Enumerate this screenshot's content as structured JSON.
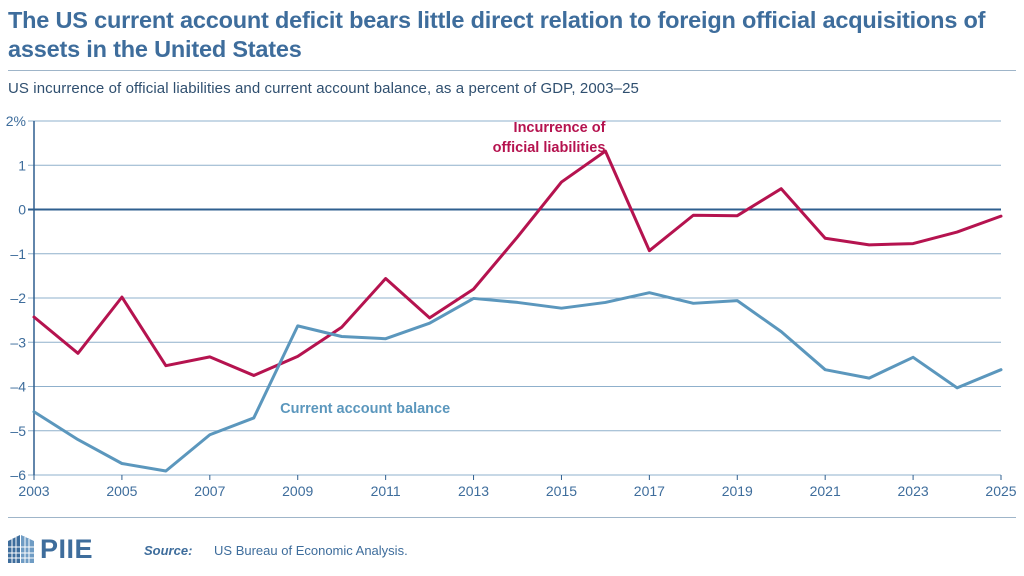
{
  "header": {
    "title": "The US current account deficit bears little direct relation to foreign official acquisitions of assets in the United States",
    "subtitle": "US incurrence of official liabilities and current account balance, as a percent of GDP, 2003–25"
  },
  "footer": {
    "logo_text": "PIIE",
    "source_label": "Source:",
    "source_text": "US Bureau of Economic Analysis."
  },
  "colors": {
    "liabilities": "#b5134f",
    "current_account": "#5b97bd",
    "axis": "#3e6d9c",
    "grid": "#3e6d9c"
  },
  "chart_data": {
    "type": "line",
    "title": "US incurrence of official liabilities and current account balance, as a percent of GDP, 2003–25",
    "xlabel": "",
    "ylabel": "",
    "x": [
      2003,
      2004,
      2005,
      2006,
      2007,
      2008,
      2009,
      2010,
      2011,
      2012,
      2013,
      2014,
      2015,
      2016,
      2017,
      2018,
      2019,
      2020,
      2021,
      2022,
      2023,
      2024,
      2025
    ],
    "xlim": [
      2003,
      2025
    ],
    "ylim": [
      -6,
      2
    ],
    "x_tick_labels": [
      "2003",
      "2005",
      "2007",
      "2009",
      "2011",
      "2013",
      "2015",
      "2017",
      "2019",
      "2021",
      "2023",
      "2025"
    ],
    "y_tick_values": [
      2,
      1,
      0,
      -1,
      -2,
      -3,
      -4,
      -5,
      -6
    ],
    "y_tick_labels": [
      "2%",
      "1",
      "0",
      "–1",
      "–2",
      "–3",
      "–4",
      "–5",
      "–6"
    ],
    "grid": true,
    "series": [
      {
        "name": "Incurrence of official liabilities",
        "label_lines": [
          "Incurrence of",
          "official liabilities"
        ],
        "color": "#b5134f",
        "values": [
          -2.43,
          -3.25,
          -1.98,
          -3.53,
          -3.33,
          -3.75,
          -3.32,
          -2.66,
          -1.56,
          -2.45,
          -1.8,
          -0.62,
          0.62,
          1.32,
          -0.93,
          -0.13,
          -0.14,
          0.47,
          -0.65,
          -0.8,
          -0.77,
          -0.51,
          -0.15
        ]
      },
      {
        "name": "Current account balance",
        "label_lines": [
          "Current account balance"
        ],
        "color": "#5b97bd",
        "values": [
          -4.57,
          -5.2,
          -5.74,
          -5.91,
          -5.09,
          -4.71,
          -2.63,
          -2.87,
          -2.92,
          -2.57,
          -2.01,
          -2.1,
          -2.23,
          -2.1,
          -1.88,
          -2.12,
          -2.06,
          -2.76,
          -3.62,
          -3.81,
          -3.34,
          -4.03,
          -3.62
        ]
      }
    ]
  }
}
